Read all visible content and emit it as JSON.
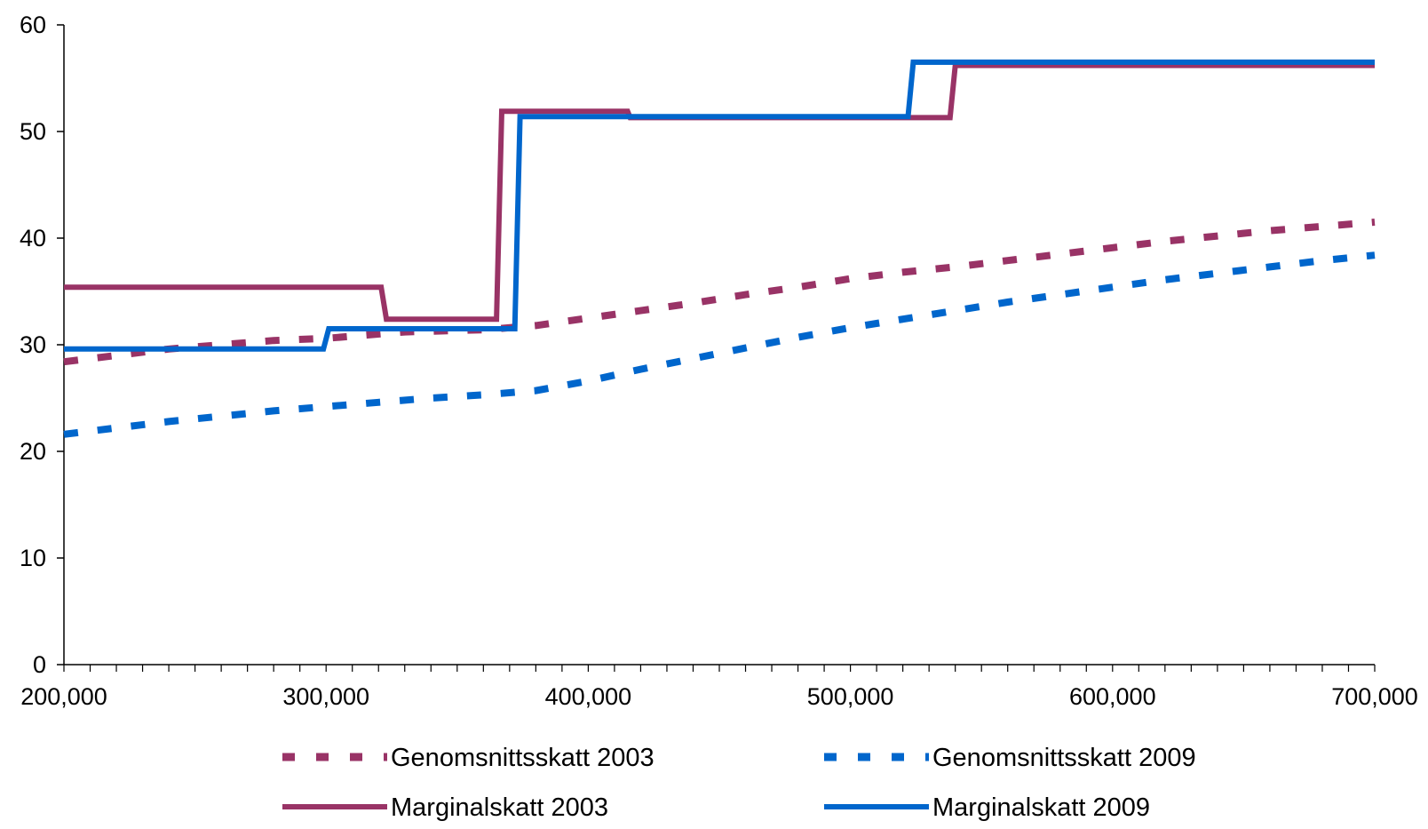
{
  "chart_data": {
    "type": "line",
    "xlim": [
      200000,
      700000
    ],
    "ylim": [
      0,
      60
    ],
    "x_ticks": [
      200000,
      300000,
      400000,
      500000,
      600000,
      700000
    ],
    "x_tick_labels": [
      "200,000",
      "300,000",
      "400,000",
      "500,000",
      "600,000",
      "700,000"
    ],
    "x_minor_tick_step": 10000,
    "y_ticks": [
      0,
      10,
      20,
      30,
      40,
      50,
      60
    ],
    "y_tick_labels": [
      "0",
      "10",
      "20",
      "30",
      "40",
      "50",
      "60"
    ],
    "grid": false,
    "legend_position": "bottom",
    "series": [
      {
        "name": "Genomsnittsskatt 2003",
        "style": "dashed",
        "color": "#993366",
        "points": [
          [
            200000,
            28.4
          ],
          [
            220000,
            29.0
          ],
          [
            240000,
            29.6
          ],
          [
            260000,
            30.0
          ],
          [
            280000,
            30.4
          ],
          [
            300000,
            30.6
          ],
          [
            330000,
            31.2
          ],
          [
            360000,
            31.4
          ],
          [
            380000,
            31.8
          ],
          [
            400000,
            32.5
          ],
          [
            420000,
            33.2
          ],
          [
            440000,
            33.9
          ],
          [
            460000,
            34.7
          ],
          [
            480000,
            35.4
          ],
          [
            500000,
            36.2
          ],
          [
            520000,
            36.8
          ],
          [
            540000,
            37.3
          ],
          [
            560000,
            37.9
          ],
          [
            580000,
            38.5
          ],
          [
            600000,
            39.1
          ],
          [
            620000,
            39.7
          ],
          [
            640000,
            40.2
          ],
          [
            660000,
            40.7
          ],
          [
            680000,
            41.1
          ],
          [
            700000,
            41.5
          ]
        ]
      },
      {
        "name": "Genomsnittsskatt 2009",
        "style": "dashed",
        "color": "#0066CC",
        "points": [
          [
            200000,
            21.6
          ],
          [
            220000,
            22.2
          ],
          [
            240000,
            22.8
          ],
          [
            260000,
            23.3
          ],
          [
            280000,
            23.8
          ],
          [
            300000,
            24.2
          ],
          [
            320000,
            24.6
          ],
          [
            340000,
            25.0
          ],
          [
            360000,
            25.3
          ],
          [
            380000,
            25.7
          ],
          [
            400000,
            26.6
          ],
          [
            420000,
            27.7
          ],
          [
            440000,
            28.7
          ],
          [
            460000,
            29.7
          ],
          [
            480000,
            30.7
          ],
          [
            500000,
            31.6
          ],
          [
            520000,
            32.4
          ],
          [
            540000,
            33.2
          ],
          [
            560000,
            34.0
          ],
          [
            580000,
            34.7
          ],
          [
            600000,
            35.4
          ],
          [
            620000,
            36.1
          ],
          [
            640000,
            36.7
          ],
          [
            660000,
            37.3
          ],
          [
            680000,
            37.9
          ],
          [
            700000,
            38.4
          ]
        ]
      },
      {
        "name": "Marginalskatt 2003",
        "style": "solid",
        "color": "#993366",
        "points": [
          [
            200000,
            35.4
          ],
          [
            321000,
            35.4
          ],
          [
            323000,
            32.4
          ],
          [
            365000,
            32.4
          ],
          [
            367000,
            51.9
          ],
          [
            415000,
            51.9
          ],
          [
            416000,
            51.3
          ],
          [
            538000,
            51.3
          ],
          [
            540000,
            56.2
          ],
          [
            700000,
            56.2
          ]
        ]
      },
      {
        "name": "Marginalskatt 2009",
        "style": "solid",
        "color": "#0066CC",
        "points": [
          [
            200000,
            29.6
          ],
          [
            299000,
            29.6
          ],
          [
            301000,
            31.5
          ],
          [
            372000,
            31.5
          ],
          [
            374000,
            51.4
          ],
          [
            522000,
            51.4
          ],
          [
            524000,
            56.5
          ],
          [
            700000,
            56.5
          ]
        ]
      }
    ]
  }
}
